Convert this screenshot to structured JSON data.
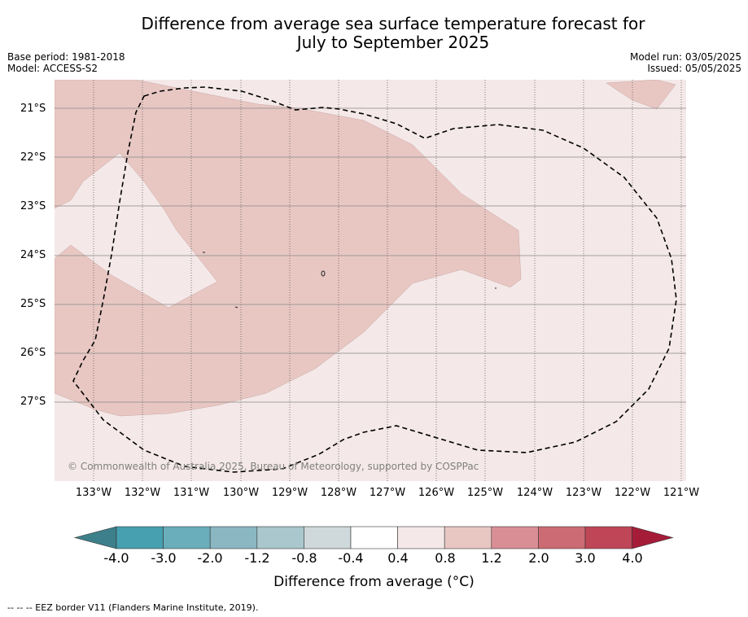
{
  "title_line1": "Difference from average sea surface temperature forecast for",
  "title_line2": "July to September 2025",
  "base_period": "Base period: 1981-2018",
  "model": "Model: ACCESS-S2",
  "model_run": "Model run: 03/05/2025",
  "issued": "Issued: 05/05/2025",
  "copyright": "© Commonwealth of Australia 2025, Bureau of Meteorology, supported by COSPPac",
  "latitude_labels": [
    "21°S",
    "22°S",
    "23°S",
    "24°S",
    "25°S",
    "26°S",
    "27°S"
  ],
  "longitude_labels": [
    "133°W",
    "132°W",
    "131°W",
    "130°W",
    "129°W",
    "128°W",
    "127°W",
    "126°W",
    "125°W",
    "124°W",
    "123°W",
    "122°W",
    "121°W"
  ],
  "colorbar": {
    "ticks": [
      "-4.0",
      "-3.0",
      "-2.0",
      "-1.2",
      "-0.8",
      "-0.4",
      "0.4",
      "0.8",
      "1.2",
      "2.0",
      "3.0",
      "4.0"
    ],
    "colors": [
      "#3d7f8a",
      "#46a0b0",
      "#6aadbb",
      "#8ab7c2",
      "#a9c7cc",
      "#cfd8da",
      "#ffffff",
      "#f4e8e8",
      "#e8c7c3",
      "#d98e95",
      "#cc6b74",
      "#bf4657",
      "#a51c39"
    ],
    "label": "Difference from average (°C)"
  },
  "legend_colors": {
    "band_0_4_to_0_8": "#f4e8e8",
    "band_0_8_to_1_2": "#e8c7c3"
  },
  "footer": "--  --  -- EEZ border V11 (Flanders Marine Institute, 2019)."
}
